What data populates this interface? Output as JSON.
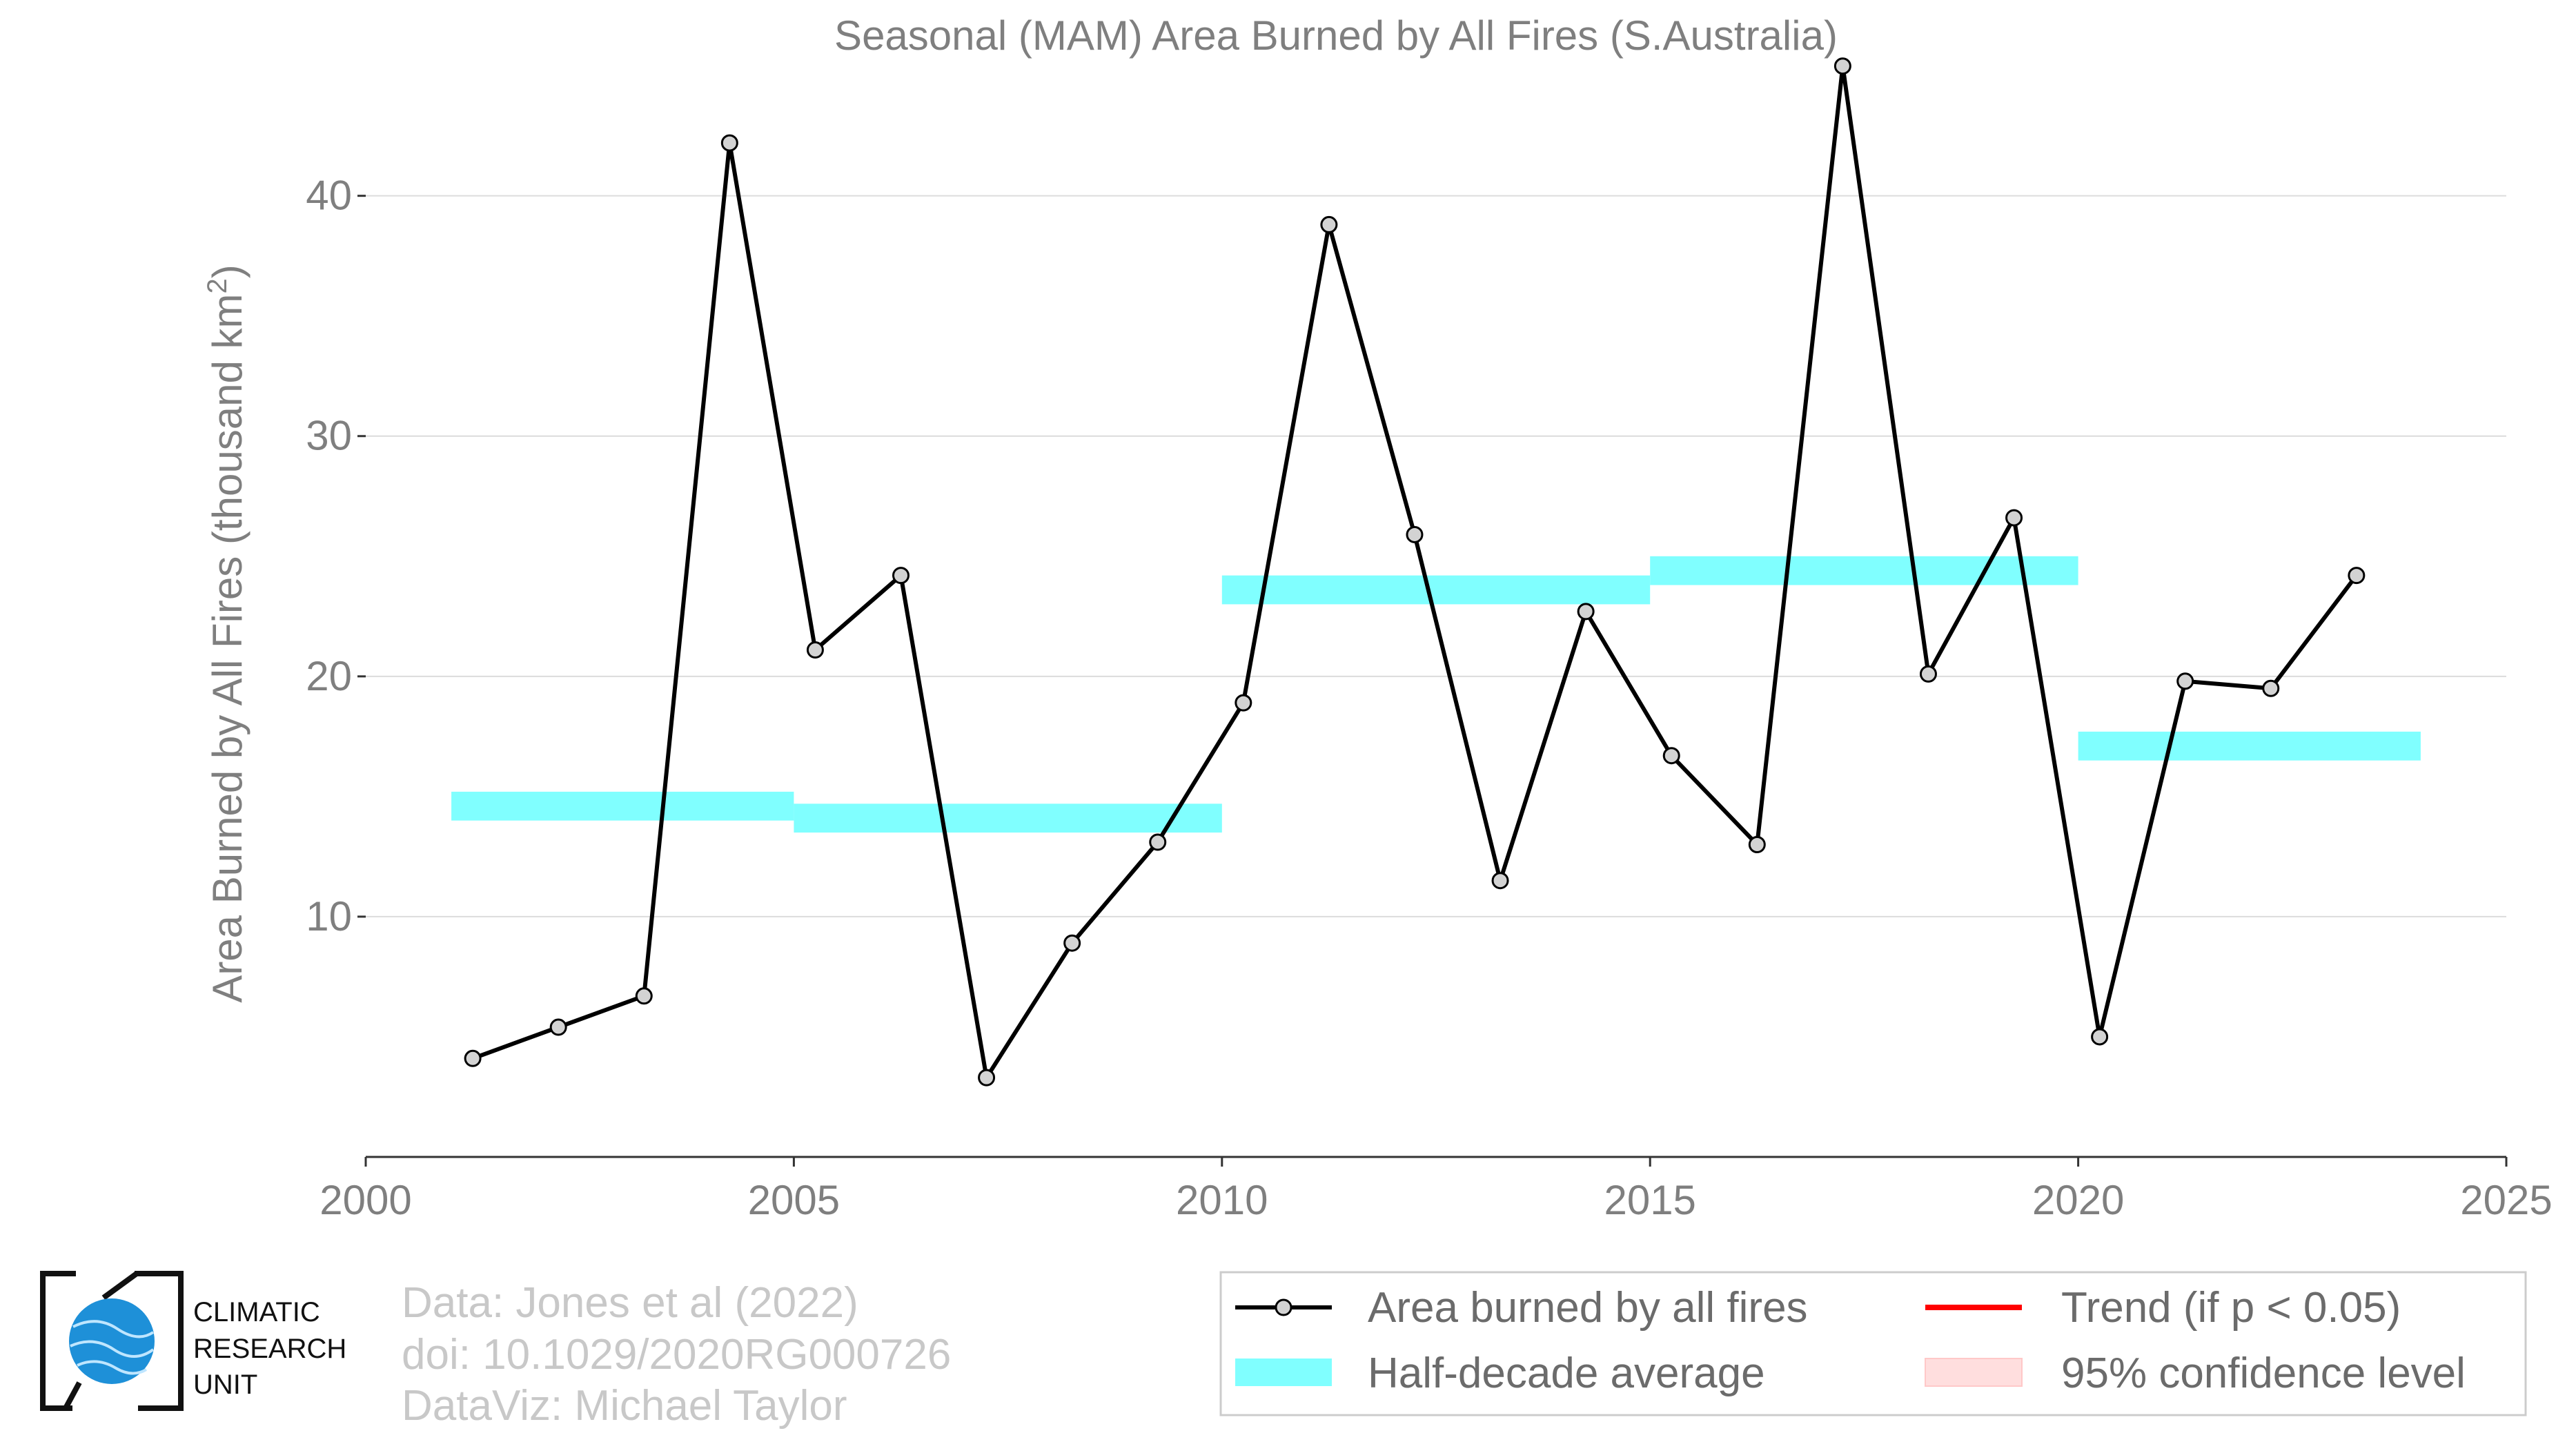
{
  "chart_data": {
    "type": "line",
    "title": "Seasonal (MAM) Area Burned by All Fires (S.Australia)",
    "ylabel_main": "Area Burned by All Fires (thousand km",
    "ylabel_sup": "2",
    "ylabel_close": ")",
    "xlabel": "",
    "xlim": [
      2000,
      2025
    ],
    "ylim": [
      0,
      47
    ],
    "x_ticks": [
      2000,
      2005,
      2010,
      2015,
      2020,
      2025
    ],
    "y_ticks": [
      10,
      20,
      30,
      40
    ],
    "grid": "horizontal",
    "legend_position": "bottom-right",
    "series": [
      {
        "name": "Area burned by all fires",
        "x": [
          2001.25,
          2002.25,
          2003.25,
          2004.25,
          2005.25,
          2006.25,
          2007.25,
          2008.25,
          2009.25,
          2010.25,
          2011.25,
          2012.25,
          2013.25,
          2014.25,
          2015.25,
          2016.25,
          2017.25,
          2018.25,
          2019.25,
          2020.25,
          2021.25,
          2022.25,
          2023.25
        ],
        "y": [
          4.1,
          5.4,
          6.7,
          42.2,
          21.1,
          24.2,
          3.3,
          8.9,
          13.1,
          18.9,
          38.8,
          25.9,
          11.5,
          22.7,
          16.7,
          13.0,
          45.4,
          20.1,
          26.6,
          5.0,
          19.8,
          19.5,
          24.2
        ]
      }
    ],
    "half_decade_average": {
      "name": "Half-decade average",
      "segments": [
        {
          "x0": 2001,
          "x1": 2005,
          "y": 14.6
        },
        {
          "x0": 2005,
          "x1": 2010,
          "y": 14.1
        },
        {
          "x0": 2010,
          "x1": 2015,
          "y": 23.6
        },
        {
          "x0": 2015,
          "x1": 2020,
          "y": 24.4
        },
        {
          "x0": 2020,
          "x1": 2024,
          "y": 17.1
        }
      ]
    },
    "legend": [
      {
        "label": "Area burned by all fires",
        "color": "#000000",
        "kind": "line-marker"
      },
      {
        "label": "Trend (if p < 0.05)",
        "color": "#ff0000",
        "kind": "line"
      },
      {
        "label": "Half-decade average",
        "color": "#80ffff",
        "kind": "band"
      },
      {
        "label": "95% confidence level",
        "color": "#ffdede",
        "kind": "patch"
      }
    ],
    "colors": {
      "line": "#000000",
      "marker_fill": "#d3d3d3",
      "average": "#80ffff",
      "trend": "#ff0000",
      "confidence": "#ffdede",
      "text": "#7f7f7f",
      "grid": "#dcdcdc"
    }
  },
  "credits": {
    "lines": [
      "Data: Jones et al (2022)",
      "doi: 10.1029/2020RG000726",
      "DataViz: Michael Taylor"
    ]
  },
  "logo": {
    "lines": [
      "CLIMATIC",
      "RESEARCH",
      "UNIT"
    ]
  }
}
